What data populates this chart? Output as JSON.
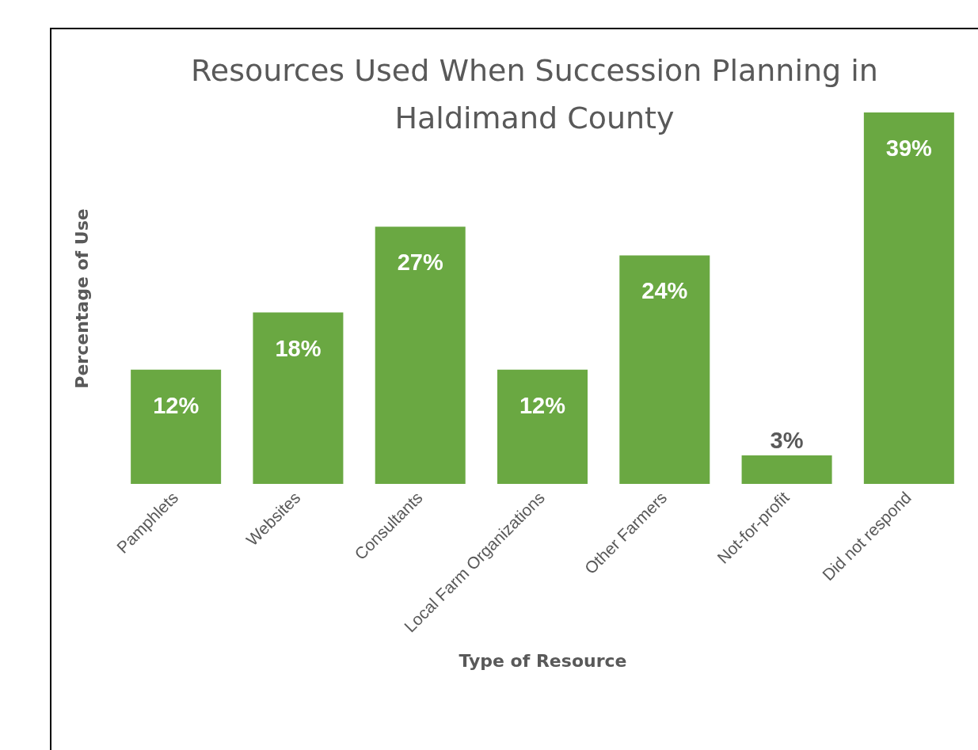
{
  "chart_data": {
    "type": "bar",
    "title": "Resources Used When Succession Planning in Haldimand County",
    "xlabel": "Type of Resource",
    "ylabel": "Percentage of Use",
    "categories": [
      "Pamphlets",
      "Websites",
      "Consultants",
      "Local Farm Organizations",
      "Other Farmers",
      "Not-for-profit",
      "Did not respond"
    ],
    "values": [
      12,
      18,
      27,
      12,
      24,
      3,
      39
    ],
    "value_labels": [
      "12%",
      "18%",
      "27%",
      "12%",
      "24%",
      "3%",
      "39%"
    ],
    "color": "#6aa842",
    "grid": false
  }
}
